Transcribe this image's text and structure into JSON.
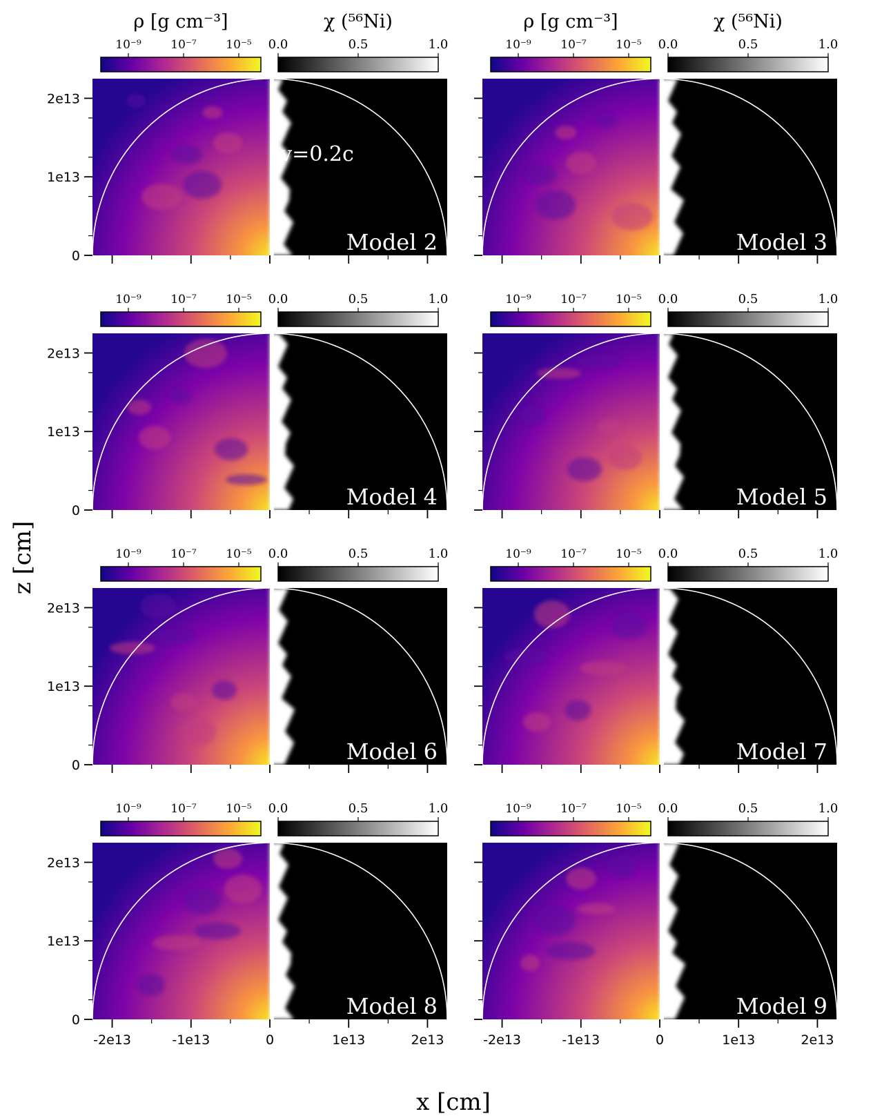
{
  "figure": {
    "xlabel": "x [cm]",
    "ylabel": "z [cm]"
  },
  "colorbars": {
    "density": {
      "label": "ρ [g cm⁻³]",
      "scale": "log",
      "ticks": [
        "10⁻⁹",
        "10⁻⁷",
        "10⁻⁵"
      ],
      "colormap": "plasma",
      "colors": [
        "#0d0887",
        "#6a00a8",
        "#b12a90",
        "#e16462",
        "#fca636",
        "#f0f921"
      ]
    },
    "nickel": {
      "label": "χ (⁵⁶Ni)",
      "ticks": [
        "0.0",
        "0.5",
        "1.0"
      ],
      "colormap": "gray",
      "colors": [
        "#000000",
        "#ffffff"
      ]
    }
  },
  "axes": {
    "x_tick_labels": [
      "-2e13",
      "-1e13",
      "0",
      "1e13",
      "2e13"
    ],
    "x_tick_values": [
      -20000000000000.0,
      -10000000000000.0,
      0,
      10000000000000.0,
      20000000000000.0
    ],
    "y_tick_labels": [
      "2e13",
      "1e13",
      "0"
    ],
    "y_tick_values": [
      20000000000000.0,
      10000000000000.0,
      0
    ],
    "xlim": [
      -22500000000000.0,
      22500000000000.0
    ],
    "ylim": [
      0,
      22500000000000.0
    ]
  },
  "annotation": {
    "text": "v=0.2c",
    "circle_radius_cm": 22500000000000.0
  },
  "chart_data": {
    "type": "heatmap",
    "panels": [
      {
        "title": "Model 2",
        "left": "log density ρ",
        "right": "⁵⁶Ni mass fraction χ"
      },
      {
        "title": "Model 3",
        "left": "log density ρ",
        "right": "⁵⁶Ni mass fraction χ"
      },
      {
        "title": "Model 4",
        "left": "log density ρ",
        "right": "⁵⁶Ni mass fraction χ"
      },
      {
        "title": "Model 5",
        "left": "log density ρ",
        "right": "⁵⁶Ni mass fraction χ"
      },
      {
        "title": "Model 6",
        "left": "log density ρ",
        "right": "⁵⁶Ni mass fraction χ"
      },
      {
        "title": "Model 7",
        "left": "log density ρ",
        "right": "⁵⁶Ni mass fraction χ"
      },
      {
        "title": "Model 8",
        "left": "log density ρ",
        "right": "⁵⁶Ni mass fraction χ"
      },
      {
        "title": "Model 9",
        "left": "log density ρ",
        "right": "⁵⁶Ni mass fraction χ"
      }
    ]
  }
}
